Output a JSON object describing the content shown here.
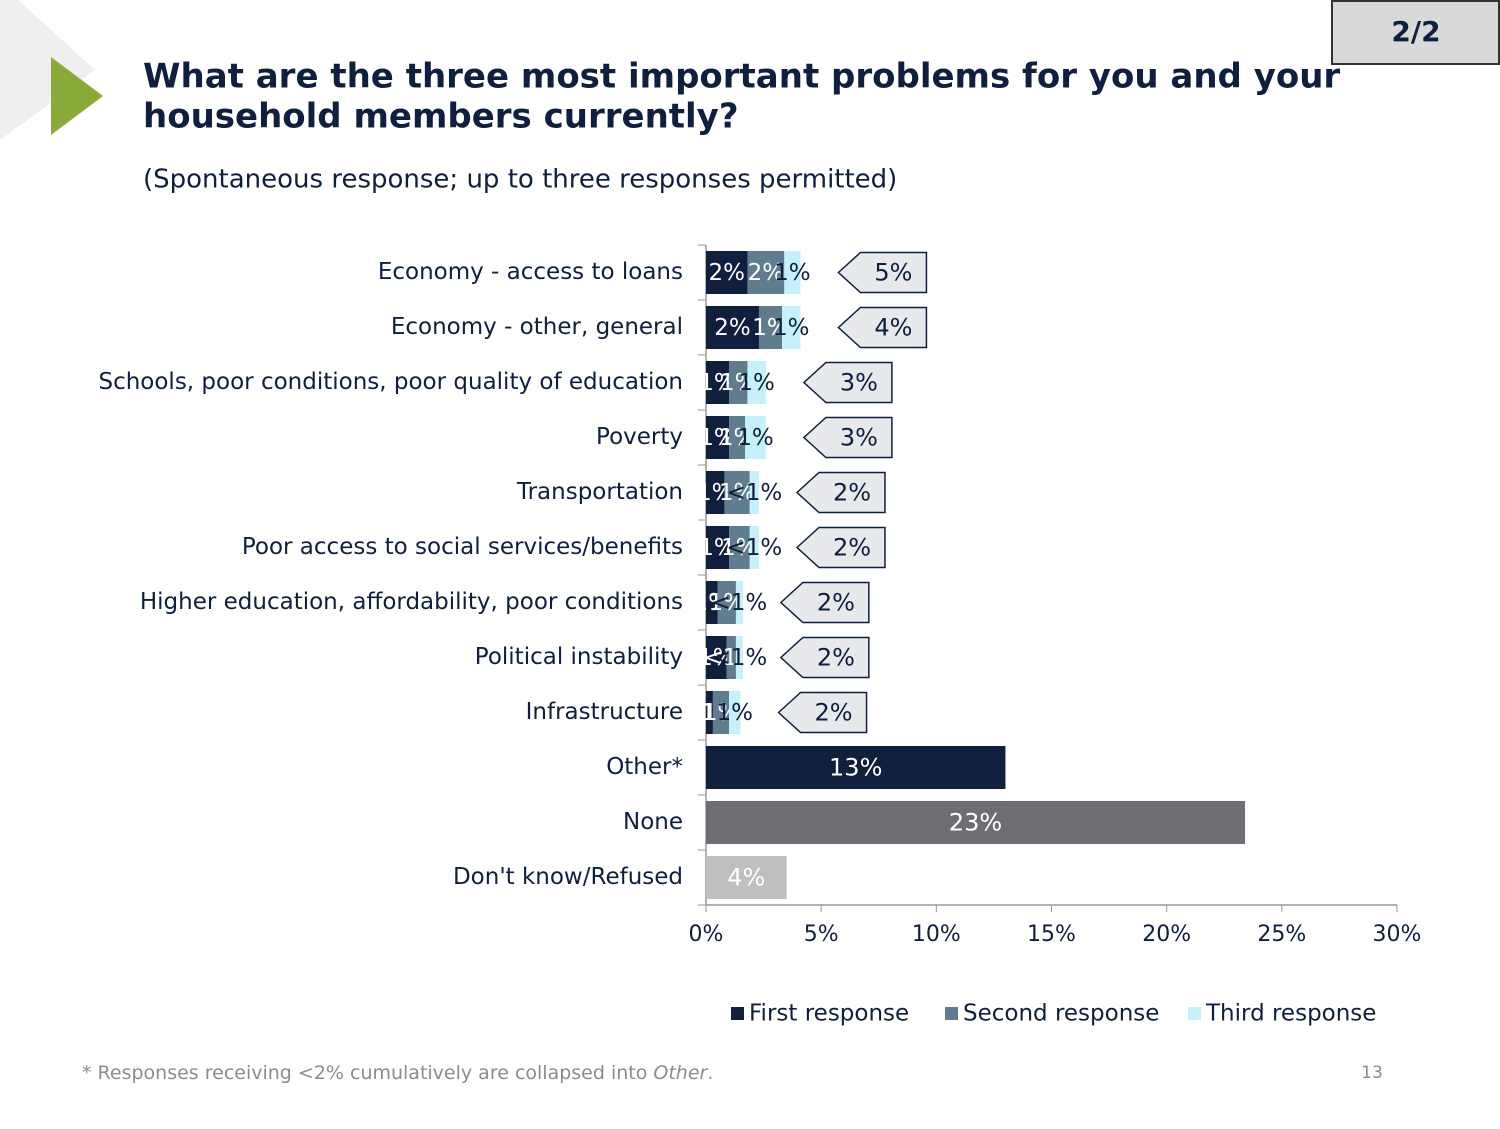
{
  "page": {
    "badge": "2/2",
    "page_number": "13",
    "footnote": "* Responses receiving <2% cumulatively are collapsed into ",
    "footnote_em": "Other",
    "footnote_end": "."
  },
  "chart_data": {
    "type": "stacked-hbar",
    "title": [
      "What are the three most important problems for you and your",
      "household members currently?"
    ],
    "subtitle": "(Spontaneous response; up to three responses permitted)",
    "categories": [
      "Economy - access to loans",
      "Economy - other, general",
      "Schools, poor conditions, poor quality of education",
      "Poverty",
      "Transportation",
      "Poor access to social services/benefits",
      "Higher education, affordability, poor conditions",
      "Political instability",
      "Infrastructure",
      "Other*",
      "None",
      "Don't know/Refused"
    ],
    "series": [
      {
        "name": "First response",
        "color": "#0f1f3d",
        "label_color": "#ffffff",
        "values": [
          1.8,
          2.3,
          1.0,
          1.0,
          0.8,
          1.0,
          0.5,
          0.9,
          0.3,
          null,
          null,
          null
        ],
        "value_labels": [
          "2%",
          "2%",
          "1%",
          "1%",
          "1%",
          "1%",
          "1%",
          "1%",
          "<1%",
          null,
          null,
          null
        ]
      },
      {
        "name": "Second response",
        "color": "#5f7d8e",
        "label_color": "#ffffff",
        "values": [
          1.6,
          1.0,
          0.8,
          0.7,
          1.1,
          0.9,
          0.8,
          0.4,
          0.7,
          null,
          null,
          null
        ],
        "value_labels": [
          "2%",
          "1%",
          "1%",
          "1%",
          "1%",
          "1%",
          "1%",
          "<1%",
          "1%",
          null,
          null,
          null
        ]
      },
      {
        "name": "Third response",
        "color": "#c6f1fb",
        "label_color": "#0f1f3d",
        "values": [
          0.7,
          0.8,
          0.8,
          0.9,
          0.4,
          0.4,
          0.3,
          0.3,
          0.5,
          null,
          null,
          null
        ],
        "value_labels": [
          "1%",
          "1%",
          "1%",
          "1%",
          "<1%",
          "<1%",
          "<1%",
          "<1%",
          "1%",
          null,
          null,
          null
        ]
      }
    ],
    "totals": {
      "values": [
        5,
        4,
        3,
        3,
        2,
        2,
        2,
        2,
        2,
        null,
        null,
        null
      ],
      "value_labels": [
        "5%",
        "4%",
        "3%",
        "3%",
        "2%",
        "2%",
        "2%",
        "2%",
        "2%",
        null,
        null,
        null
      ]
    },
    "single_bars": {
      "values": [
        null,
        null,
        null,
        null,
        null,
        null,
        null,
        null,
        null,
        13,
        23.4,
        3.5
      ],
      "value_labels": [
        null,
        null,
        null,
        null,
        null,
        null,
        null,
        null,
        null,
        "13%",
        "23%",
        "4%"
      ],
      "colors": [
        null,
        null,
        null,
        null,
        null,
        null,
        null,
        null,
        null,
        "#0f1f3d",
        "#6d6e71",
        "#bfbfbf"
      ]
    },
    "xlim": [
      0,
      30
    ],
    "xticks": [
      {
        "value": 0,
        "label": "0%"
      },
      {
        "value": 5,
        "label": "5%"
      },
      {
        "value": 10,
        "label": "10%"
      },
      {
        "value": 15,
        "label": "15%"
      },
      {
        "value": 20,
        "label": "20%"
      },
      {
        "value": 25,
        "label": "25%"
      },
      {
        "value": 30,
        "label": "30%"
      }
    ],
    "legend": "bottom"
  }
}
